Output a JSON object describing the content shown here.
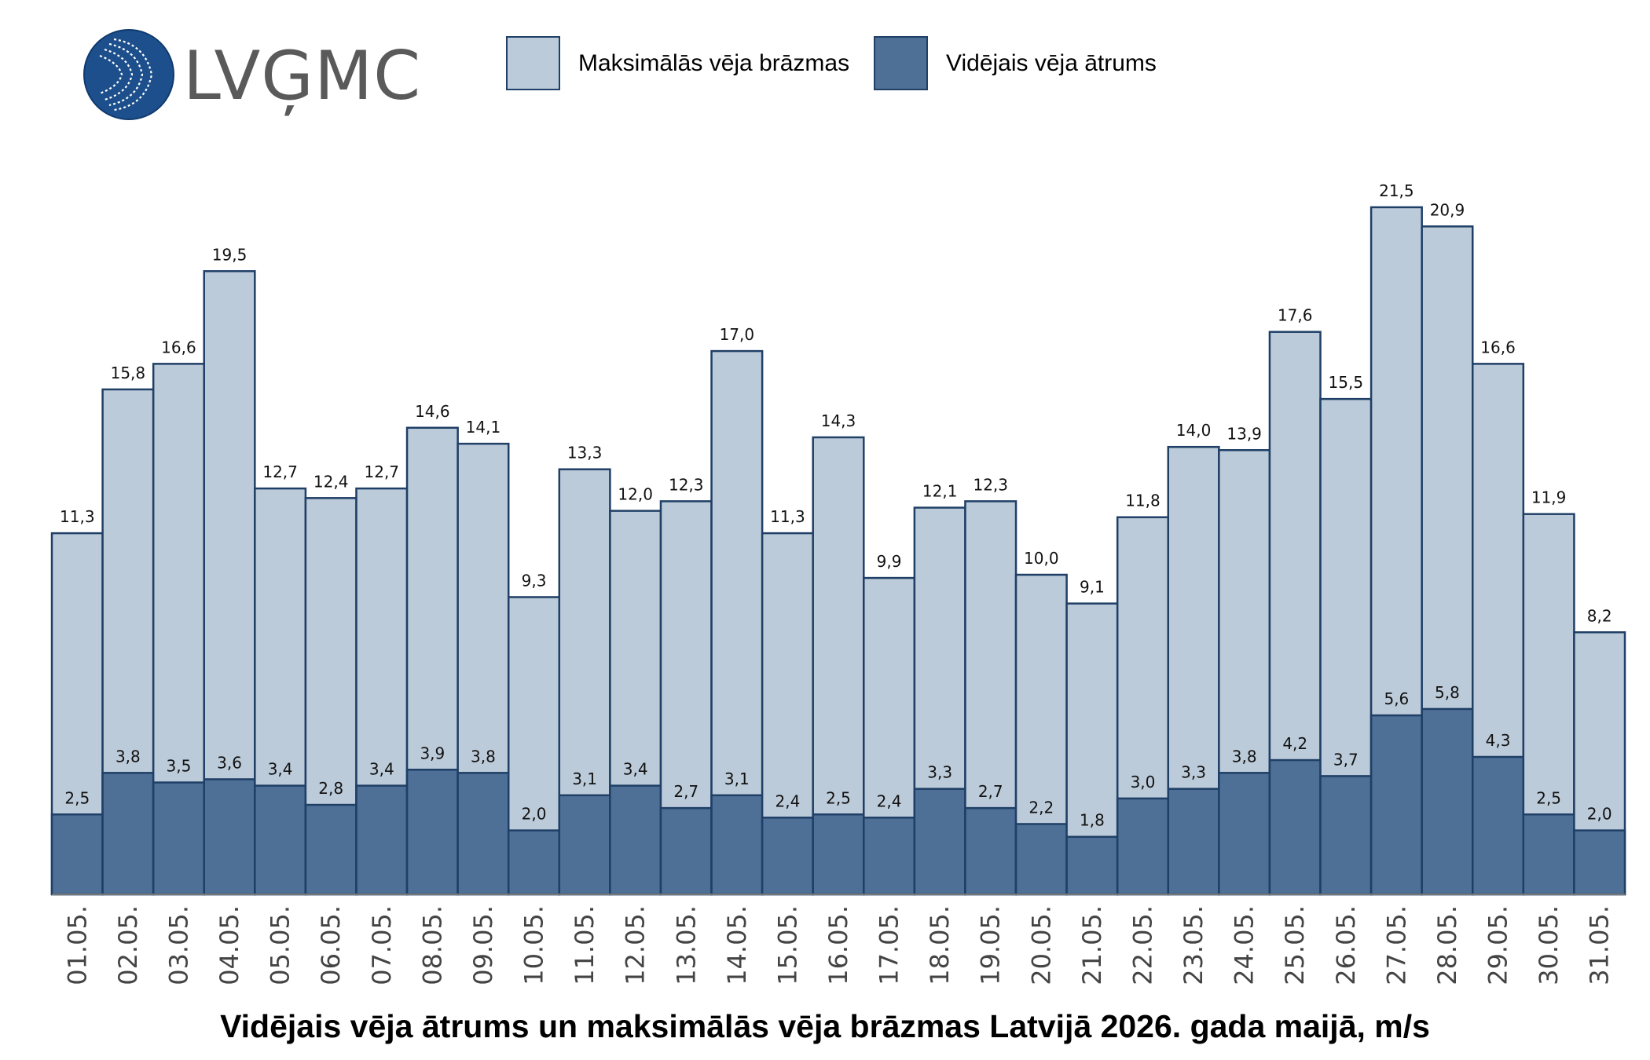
{
  "logo": {
    "text": "LVĢMC",
    "icon": "lvgmc-wave-globe-icon"
  },
  "legend": [
    {
      "label": "Maksimālās vēja brāzmas",
      "color": "#bccbda"
    },
    {
      "label": "Vidējais vēja ātrums",
      "color": "#4e7096"
    }
  ],
  "colors": {
    "gust": "#bccbda",
    "mean": "#4e7096",
    "stroke": "#1f3f66",
    "axis": "#777777"
  },
  "chart_data": {
    "type": "bar",
    "title": "Vidējais vēja ātrums un maksimālās vēja brāzmas Latvijā 2026. gada maijā, m/s",
    "xlabel": "",
    "ylabel": "",
    "grid": false,
    "legend_position": "top",
    "ylim": [
      0,
      22
    ],
    "categories": [
      "01.05.",
      "02.05.",
      "03.05.",
      "04.05.",
      "05.05.",
      "06.05.",
      "07.05.",
      "08.05.",
      "09.05.",
      "10.05.",
      "11.05.",
      "12.05.",
      "13.05.",
      "14.05.",
      "15.05.",
      "16.05.",
      "17.05.",
      "18.05.",
      "19.05.",
      "20.05.",
      "21.05.",
      "22.05.",
      "23.05.",
      "24.05.",
      "25.05.",
      "26.05.",
      "27.05.",
      "28.05.",
      "29.05.",
      "30.05.",
      "31.05."
    ],
    "series": [
      {
        "name": "Maksimālās vēja brāzmas",
        "values": [
          11.3,
          15.8,
          16.6,
          19.5,
          12.7,
          12.4,
          12.7,
          14.6,
          14.1,
          9.3,
          13.3,
          12.0,
          12.3,
          17.0,
          11.3,
          14.3,
          9.9,
          12.1,
          12.3,
          10.0,
          9.1,
          11.8,
          14.0,
          13.9,
          17.6,
          15.5,
          21.5,
          20.9,
          16.6,
          11.9,
          8.2
        ],
        "labels": [
          "11,3",
          "15,8",
          "16,6",
          "19,5",
          "12,7",
          "12,4",
          "12,7",
          "14,6",
          "14,1",
          "9,3",
          "13,3",
          "12,0",
          "12,3",
          "17,0",
          "11,3",
          "14,3",
          "9,9",
          "12,1",
          "12,3",
          "10,0",
          "9,1",
          "11,8",
          "14,0",
          "13,9",
          "17,6",
          "15,5",
          "21,5",
          "20,9",
          "16,6",
          "11,9",
          "8,2"
        ]
      },
      {
        "name": "Vidējais vēja ātrums",
        "values": [
          2.5,
          3.8,
          3.5,
          3.6,
          3.4,
          2.8,
          3.4,
          3.9,
          3.8,
          2.0,
          3.1,
          3.4,
          2.7,
          3.1,
          2.4,
          2.5,
          2.4,
          3.3,
          2.7,
          2.2,
          1.8,
          3.0,
          3.3,
          3.8,
          4.2,
          3.7,
          5.6,
          5.8,
          4.3,
          2.5,
          2.0
        ],
        "labels": [
          "2,5",
          "3,8",
          "3,5",
          "3,6",
          "3,4",
          "2,8",
          "3,4",
          "3,9",
          "3,8",
          "2,0",
          "3,1",
          "3,4",
          "2,7",
          "3,1",
          "2,4",
          "2,5",
          "2,4",
          "3,3",
          "2,7",
          "2,2",
          "1,8",
          "3,0",
          "3,3",
          "3,8",
          "4,2",
          "3,7",
          "5,6",
          "5,8",
          "4,3",
          "2,5",
          "2,0"
        ]
      }
    ]
  }
}
